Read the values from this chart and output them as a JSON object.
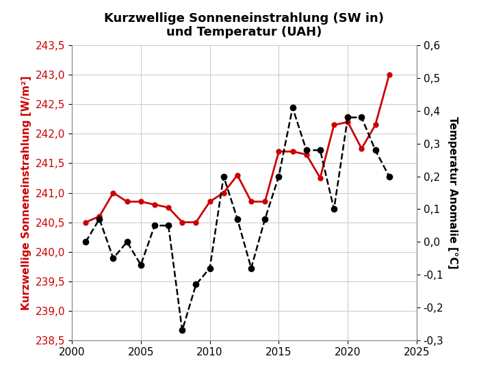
{
  "title": "Kurzwellige Sonneneinstrahlung (SW in)\nund Temperatur (UAH)",
  "ylabel_left": "Kurzwellige Sonneneinstrahlung [W/m²]",
  "ylabel_right": "Temperatur Anomalie [°C]",
  "sw_years": [
    2001,
    2002,
    2003,
    2004,
    2005,
    2006,
    2007,
    2008,
    2009,
    2010,
    2011,
    2012,
    2013,
    2014,
    2015,
    2016,
    2017,
    2018,
    2019,
    2020,
    2021,
    2022,
    2023
  ],
  "sw_values": [
    240.5,
    240.6,
    241.0,
    240.85,
    240.85,
    240.8,
    240.75,
    240.5,
    240.5,
    240.85,
    241.0,
    241.3,
    240.85,
    240.85,
    241.7,
    241.7,
    241.65,
    241.25,
    242.15,
    242.2,
    241.75,
    242.15,
    243.0
  ],
  "uah_years": [
    2001,
    2002,
    2003,
    2004,
    2005,
    2006,
    2007,
    2008,
    2009,
    2010,
    2011,
    2012,
    2013,
    2014,
    2015,
    2016,
    2017,
    2018,
    2019,
    2020,
    2021,
    2022,
    2023
  ],
  "uah_values": [
    0.0,
    0.07,
    -0.05,
    0.0,
    -0.07,
    0.05,
    0.05,
    -0.27,
    -0.13,
    -0.08,
    0.2,
    0.07,
    -0.08,
    0.07,
    0.2,
    0.41,
    0.28,
    0.28,
    0.1,
    0.38,
    0.38,
    0.28,
    0.2
  ],
  "sw_color": "#cc0000",
  "uah_color": "#000000",
  "sw_ylim": [
    238.5,
    243.5
  ],
  "uah_ylim": [
    -0.3,
    0.6
  ],
  "sw_yticks": [
    238.5,
    239.0,
    239.5,
    240.0,
    240.5,
    241.0,
    241.5,
    242.0,
    242.5,
    243.0,
    243.5
  ],
  "uah_yticks": [
    -0.3,
    -0.2,
    -0.1,
    0.0,
    0.1,
    0.2,
    0.3,
    0.4,
    0.5,
    0.6
  ],
  "xlim": [
    2000,
    2025
  ],
  "xticks": [
    2000,
    2005,
    2010,
    2015,
    2020,
    2025
  ],
  "background_color": "#ffffff",
  "grid_color": "#cccccc"
}
